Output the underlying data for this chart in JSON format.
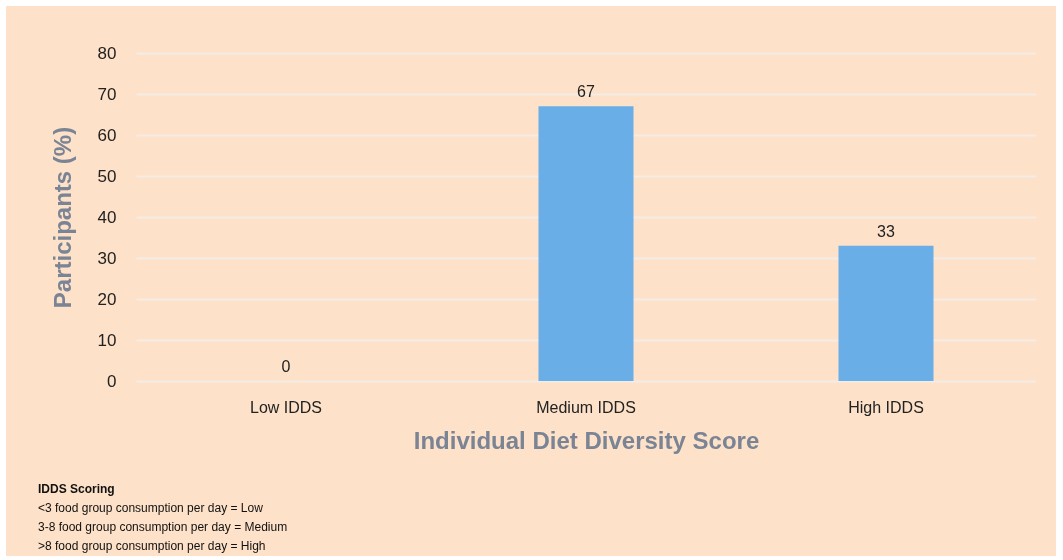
{
  "chart_data": {
    "type": "bar",
    "categories": [
      "Low IDDS",
      "Medium IDDS",
      "High IDDS"
    ],
    "values": [
      0,
      67,
      33
    ],
    "color": "#6aaee8",
    "xlabel": "Individual Diet Diversity Score",
    "ylabel": "Participants (%)",
    "ylim": [
      0,
      80
    ],
    "yticks": [
      0,
      10,
      20,
      30,
      40,
      50,
      60,
      70,
      80
    ],
    "grid": "y",
    "data_labels": true,
    "annotations": [
      "IDDS Scoring",
      "<3 food group consumption per day = Low",
      "3-8 food group consumption per day = Medium",
      ">8 food group consumption per day = High"
    ]
  }
}
